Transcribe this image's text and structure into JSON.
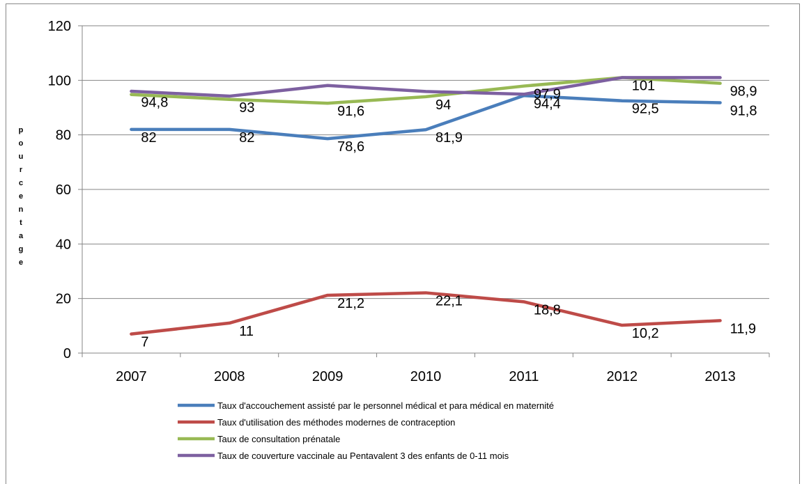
{
  "chart_data": {
    "type": "line",
    "categories": [
      "2007",
      "2008",
      "2009",
      "2010",
      "2011",
      "2012",
      "2013"
    ],
    "ylabel": "pourcentage",
    "ylim": [
      0,
      120
    ],
    "yticks": [
      "0",
      "20",
      "40",
      "60",
      "80",
      "100",
      "120"
    ],
    "grid": true,
    "legend_position": "bottom",
    "series": [
      {
        "name": "Taux d'accouchement assisté par le personnel médical et para médical en maternité",
        "color": "#4a7ebb",
        "values": [
          82,
          82,
          78.6,
          81.9,
          94.4,
          92.5,
          91.8
        ],
        "labels": [
          "82",
          "82",
          "78,6",
          "81,9",
          "94,4",
          "92,5",
          "91,8"
        ]
      },
      {
        "name": "Taux d'utilisation des méthodes modernes de contraception",
        "color": "#be4b48",
        "values": [
          7,
          11,
          21.2,
          22.1,
          18.8,
          10.2,
          11.9
        ],
        "labels": [
          "7",
          "11",
          "21,2",
          "22,1",
          "18,8",
          "10,2",
          "11,9"
        ]
      },
      {
        "name": "Taux de consultation prénatale",
        "color": "#98b954",
        "values": [
          94.8,
          93,
          91.6,
          94,
          97.9,
          101,
          98.9
        ],
        "labels": [
          "94,8",
          "93",
          "91,6",
          "94",
          "97,9",
          "101",
          "98,9"
        ]
      },
      {
        "name": "Taux de couverture vaccinale au Pentavalent 3 des enfants de 0-11 mois",
        "color": "#7d60a0",
        "values": [
          96,
          94.2,
          98.1,
          95.9,
          94.9,
          101,
          101
        ],
        "labels": []
      }
    ]
  }
}
